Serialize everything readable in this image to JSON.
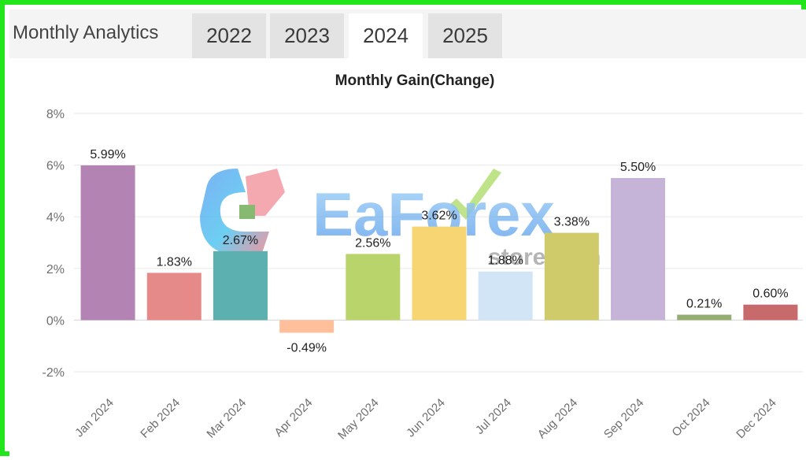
{
  "header": {
    "title": "Monthly Analytics",
    "tabs": [
      {
        "label": "2022",
        "active": false
      },
      {
        "label": "2023",
        "active": false
      },
      {
        "label": "2024",
        "active": true
      },
      {
        "label": "2025",
        "active": false
      }
    ]
  },
  "watermark": {
    "text": "EaForex",
    "subtext": "store.com"
  },
  "chart_data": {
    "type": "bar",
    "title": "Monthly Gain(Change)",
    "xlabel": "",
    "ylabel": "",
    "ylim": [
      -2,
      8
    ],
    "yticks": [
      8,
      6,
      4,
      2,
      0,
      -2
    ],
    "ytick_labels": [
      "8%",
      "6%",
      "4%",
      "2%",
      "0%",
      "-2%"
    ],
    "grid": true,
    "legend": "none",
    "categories": [
      "Jan 2024",
      "Feb 2024",
      "Mar 2024",
      "Apr 2024",
      "May 2024",
      "Jun 2024",
      "Jul 2024",
      "Aug 2024",
      "Sep 2024",
      "Oct 2024",
      "Dec 2024"
    ],
    "values": [
      5.99,
      1.83,
      2.67,
      -0.49,
      2.56,
      3.62,
      1.88,
      3.38,
      5.5,
      0.21,
      0.6
    ],
    "value_labels": [
      "5.99%",
      "1.83%",
      "2.67%",
      "-0.49%",
      "2.56%",
      "3.62%",
      "1.88%",
      "3.38%",
      "5.50%",
      "0.21%",
      "0.60%"
    ],
    "colors": [
      "#b283b3",
      "#e58a88",
      "#5cb0b0",
      "#ffbf9b",
      "#b8d46a",
      "#f6d572",
      "#d2e5f6",
      "#cfcb6b",
      "#c6b4d8",
      "#94ad70",
      "#c8696c"
    ]
  }
}
